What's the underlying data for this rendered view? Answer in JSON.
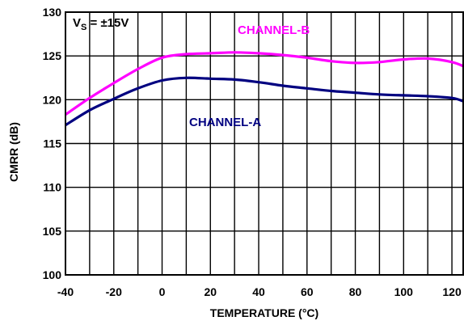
{
  "chart_data": {
    "type": "line",
    "title": "",
    "xlabel": "TEMPERATURE (°C)",
    "ylabel": "CMRR (dB)",
    "xlim": [
      -40,
      125
    ],
    "ylim": [
      100,
      130
    ],
    "x_ticks": [
      "-40",
      "-20",
      "0",
      "20",
      "40",
      "60",
      "80",
      "100",
      "120"
    ],
    "y_ticks": [
      "100",
      "105",
      "110",
      "115",
      "120",
      "125",
      "130"
    ],
    "grid": true,
    "annotation": {
      "main": "V",
      "sub": "S",
      "rest": " = ±15V"
    },
    "series": [
      {
        "name": "CHANNEL-B",
        "color": "#ff00ff",
        "x": [
          -40,
          -30,
          -20,
          -10,
          0,
          10,
          20,
          30,
          40,
          50,
          60,
          70,
          80,
          90,
          100,
          110,
          120,
          125
        ],
        "y": [
          118.3,
          120.2,
          121.9,
          123.5,
          124.8,
          125.2,
          125.3,
          125.4,
          125.3,
          125.1,
          124.8,
          124.4,
          124.2,
          124.3,
          124.6,
          124.7,
          124.3,
          123.8
        ]
      },
      {
        "name": "CHANNEL-A",
        "color": "#000080",
        "x": [
          -40,
          -30,
          -20,
          -10,
          0,
          10,
          20,
          30,
          40,
          50,
          60,
          70,
          80,
          90,
          100,
          110,
          120,
          125
        ],
        "y": [
          117.1,
          118.8,
          120.1,
          121.3,
          122.2,
          122.5,
          122.4,
          122.3,
          122.0,
          121.6,
          121.3,
          121.0,
          120.8,
          120.6,
          120.5,
          120.4,
          120.2,
          119.8
        ]
      }
    ]
  }
}
